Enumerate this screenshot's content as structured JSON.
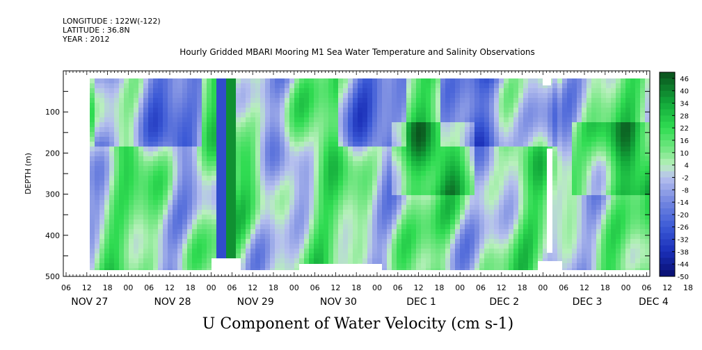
{
  "meta": {
    "longitude": "LONGITUDE : 122W(-122)",
    "latitude": "LATITUDE : 36.8N",
    "year": "YEAR : 2012"
  },
  "chart_data": {
    "type": "heatmap",
    "title": "Hourly Gridded MBARI Mooring M1 Sea Water Temperature and Salinity Observations",
    "xlabel": "U Component of Water Velocity (cm s-1)",
    "ylabel": "DEPTH (m)",
    "ylim": [
      500,
      0
    ],
    "y_ticks": [
      100,
      200,
      300,
      400,
      500
    ],
    "x_hour_ticks": [
      "06",
      "12",
      "18",
      "00",
      "06",
      "12",
      "18",
      "00",
      "06",
      "12",
      "18",
      "00",
      "06",
      "12",
      "18",
      "00",
      "06",
      "12",
      "18",
      "00",
      "06",
      "12",
      "18",
      "00",
      "06",
      "12",
      "18",
      "00",
      "06",
      "12",
      "18",
      "00",
      "06"
    ],
    "x_day_labels": [
      "NOV 27",
      "NOV 28",
      "NOV 29",
      "NOV 30",
      "DEC  1",
      "DEC  2",
      "DEC  3",
      "DEC  4"
    ],
    "colorbar": {
      "labels": [
        "46",
        "40",
        "34",
        "28",
        "22",
        "16",
        "10",
        "4",
        "-2",
        "-8",
        "-14",
        "-20",
        "-26",
        "-32",
        "-38",
        "-44",
        "-50"
      ],
      "range": [
        -50,
        49
      ]
    },
    "colors": {
      "strong_negative": "#0a1a8c",
      "negative": "#3c5ad6",
      "weak_negative": "#a8b4ec",
      "weak_positive": "#9ceaa4",
      "positive": "#26e04a",
      "strong_positive": "#0a5a20"
    }
  }
}
